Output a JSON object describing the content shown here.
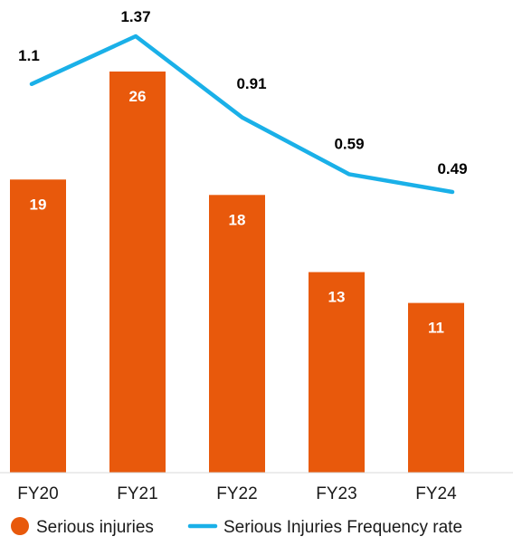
{
  "chart_data": {
    "type": "bar",
    "categories": [
      "FY20",
      "FY21",
      "FY22",
      "FY23",
      "FY24"
    ],
    "series": [
      {
        "name": "Serious injuries",
        "kind": "bar",
        "color": "#e8590c",
        "values": [
          19,
          26,
          18,
          13,
          11
        ]
      },
      {
        "name": "Serious Injuries Frequency rate",
        "kind": "line",
        "color": "#1ab0e8",
        "values": [
          1.1,
          1.37,
          0.91,
          0.59,
          0.49
        ]
      }
    ],
    "bar_ylim": [
      0,
      26
    ],
    "line_ylim": [
      0.49,
      1.37
    ],
    "title": "",
    "xlabel": "",
    "ylabel": "",
    "grid": false,
    "legend_position": "bottom"
  }
}
